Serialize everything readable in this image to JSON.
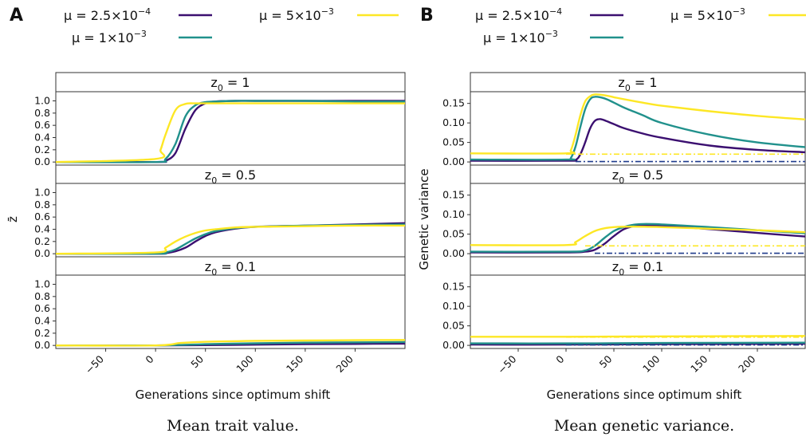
{
  "panels": {
    "A": {
      "letter": "A",
      "caption": "Mean trait value.",
      "xlabel": "Generations since optimum shift",
      "ylabel": "z̄"
    },
    "B": {
      "letter": "B",
      "caption": "Mean genetic variance.",
      "xlabel": "Generations since optimum shift",
      "ylabel": "Genetic variance"
    }
  },
  "legend": [
    {
      "prefix": "μ = 2.5×10",
      "exp": "−4",
      "color": "#3b0f70"
    },
    {
      "prefix": "μ = 1×10",
      "exp": "−3",
      "color": "#21918c"
    },
    {
      "prefix": "μ = 5×10",
      "exp": "−3",
      "color": "#fde725"
    }
  ],
  "strips": [
    {
      "base": "z",
      "sub": "0",
      "suffix": " = 1"
    },
    {
      "base": "z",
      "sub": "0",
      "suffix": " = 0.5"
    },
    {
      "base": "z",
      "sub": "0",
      "suffix": " = 0.1"
    }
  ],
  "chart_data": [
    {
      "type": "line",
      "title": "Mean trait value.",
      "xlabel": "Generations since optimum shift",
      "ylabel": "z̄",
      "xlim": [
        -100,
        250
      ],
      "xticks": [
        -50,
        0,
        50,
        100,
        150,
        200
      ],
      "ylim": [
        -0.05,
        1.15
      ],
      "yticks": [
        0.0,
        0.2,
        0.4,
        0.6,
        0.8,
        1.0
      ],
      "ytick_labels": [
        "0.0",
        "0.2",
        "0.4",
        "0.6",
        "0.8",
        "1.0"
      ],
      "facets": [
        {
          "label": "z0 = 1",
          "series": [
            {
              "name": "μ = 2.5×10^-4",
              "x": [
                -100,
                0,
                10,
                20,
                30,
                40,
                50,
                60,
                80,
                100,
                150,
                200,
                250
              ],
              "y": [
                0,
                0,
                0.02,
                0.15,
                0.55,
                0.85,
                0.96,
                0.99,
                1.0,
                1.0,
                1.0,
                1.0,
                1.0
              ]
            },
            {
              "name": "μ = 1×10^-3",
              "x": [
                -100,
                0,
                10,
                20,
                30,
                40,
                50,
                60,
                80,
                100,
                150,
                200,
                250
              ],
              "y": [
                0,
                0,
                0.05,
                0.3,
                0.75,
                0.93,
                0.98,
                0.99,
                1.0,
                1.0,
                1.0,
                0.99,
                0.99
              ]
            },
            {
              "name": "μ = 5×10^-3",
              "x": [
                -100,
                0,
                5,
                10,
                20,
                30,
                40,
                50,
                60,
                80,
                100,
                150,
                200,
                250
              ],
              "y": [
                0,
                0.05,
                0.2,
                0.45,
                0.85,
                0.95,
                0.96,
                0.96,
                0.96,
                0.96,
                0.96,
                0.96,
                0.96,
                0.96
              ]
            }
          ]
        },
        {
          "label": "z0 = 0.5",
          "series": [
            {
              "name": "μ = 2.5×10^-4",
              "x": [
                -100,
                0,
                10,
                20,
                30,
                40,
                50,
                60,
                80,
                100,
                150,
                200,
                250
              ],
              "y": [
                0,
                0,
                0.01,
                0.04,
                0.1,
                0.2,
                0.29,
                0.35,
                0.41,
                0.44,
                0.46,
                0.48,
                0.5
              ]
            },
            {
              "name": "μ = 1×10^-3",
              "x": [
                -100,
                0,
                10,
                20,
                30,
                40,
                50,
                60,
                80,
                100,
                150,
                200,
                250
              ],
              "y": [
                0,
                0,
                0.02,
                0.07,
                0.16,
                0.25,
                0.32,
                0.37,
                0.42,
                0.44,
                0.46,
                0.47,
                0.48
              ]
            },
            {
              "name": "μ = 5×10^-3",
              "x": [
                -100,
                0,
                10,
                20,
                30,
                40,
                50,
                60,
                80,
                100,
                150,
                200,
                250
              ],
              "y": [
                0,
                0.02,
                0.1,
                0.2,
                0.28,
                0.34,
                0.38,
                0.4,
                0.43,
                0.44,
                0.45,
                0.46,
                0.46
              ]
            }
          ]
        },
        {
          "label": "z0 = 0.1",
          "series": [
            {
              "name": "μ = 2.5×10^-4",
              "x": [
                -100,
                0,
                50,
                100,
                150,
                200,
                250
              ],
              "y": [
                0,
                0,
                0.005,
                0.012,
                0.02,
                0.025,
                0.03
              ]
            },
            {
              "name": "μ = 1×10^-3",
              "x": [
                -100,
                0,
                50,
                100,
                150,
                200,
                250
              ],
              "y": [
                0,
                0,
                0.02,
                0.035,
                0.045,
                0.05,
                0.055
              ]
            },
            {
              "name": "μ = 5×10^-3",
              "x": [
                -100,
                0,
                25,
                50,
                100,
                150,
                200,
                250
              ],
              "y": [
                0,
                0,
                0.04,
                0.06,
                0.075,
                0.08,
                0.085,
                0.09
              ]
            }
          ]
        }
      ]
    },
    {
      "type": "line",
      "title": "Mean genetic variance.",
      "xlabel": "Generations since optimum shift",
      "ylabel": "Genetic variance",
      "xlim": [
        -100,
        250
      ],
      "xticks": [
        -50,
        0,
        50,
        100,
        150,
        200
      ],
      "ylim": [
        -0.008,
        0.18
      ],
      "yticks": [
        0.0,
        0.05,
        0.1,
        0.15
      ],
      "ytick_labels": [
        "0.00",
        "0.05",
        "0.10",
        "0.15"
      ],
      "facets": [
        {
          "label": "z0 = 1",
          "series": [
            {
              "name": "μ = 2.5×10^-4",
              "x": [
                -100,
                0,
                10,
                15,
                20,
                25,
                30,
                35,
                40,
                50,
                60,
                80,
                100,
                150,
                200,
                250
              ],
              "y": [
                0.003,
                0.003,
                0.005,
                0.02,
                0.05,
                0.085,
                0.105,
                0.11,
                0.107,
                0.097,
                0.087,
                0.073,
                0.062,
                0.042,
                0.031,
                0.025
              ]
            },
            {
              "name": "μ = 1×10^-3",
              "x": [
                -100,
                0,
                5,
                10,
                15,
                20,
                25,
                30,
                40,
                50,
                60,
                80,
                100,
                150,
                200,
                250
              ],
              "y": [
                0.006,
                0.006,
                0.01,
                0.04,
                0.09,
                0.135,
                0.16,
                0.167,
                0.163,
                0.152,
                0.14,
                0.12,
                0.1,
                0.07,
                0.05,
                0.038
              ]
            },
            {
              "name": "μ = 5×10^-3",
              "x": [
                -100,
                0,
                5,
                10,
                15,
                20,
                25,
                30,
                40,
                50,
                60,
                80,
                100,
                150,
                200,
                250
              ],
              "y": [
                0.022,
                0.022,
                0.03,
                0.07,
                0.12,
                0.155,
                0.168,
                0.173,
                0.171,
                0.166,
                0.161,
                0.152,
                0.144,
                0.13,
                0.118,
                0.109
              ]
            },
            {
              "name": "dash-dot 1",
              "style": "dashdot",
              "color": "#fde725",
              "x": [
                0,
                250
              ],
              "y": [
                0.02,
                0.02
              ]
            },
            {
              "name": "dash-dot 2",
              "style": "dashdot",
              "color": "#1f3b8c",
              "x": [
                10,
                250
              ],
              "y": [
                0.001,
                0.001
              ]
            }
          ]
        },
        {
          "label": "z0 = 0.5",
          "series": [
            {
              "name": "μ = 2.5×10^-4",
              "x": [
                -100,
                0,
                20,
                30,
                40,
                50,
                60,
                70,
                80,
                100,
                150,
                200,
                250
              ],
              "y": [
                0.003,
                0.003,
                0.005,
                0.01,
                0.025,
                0.045,
                0.062,
                0.07,
                0.073,
                0.072,
                0.063,
                0.053,
                0.044
              ]
            },
            {
              "name": "μ = 1×10^-3",
              "x": [
                -100,
                0,
                20,
                30,
                40,
                50,
                60,
                70,
                80,
                100,
                150,
                200,
                250
              ],
              "y": [
                0.005,
                0.005,
                0.008,
                0.02,
                0.04,
                0.058,
                0.068,
                0.074,
                0.076,
                0.075,
                0.068,
                0.06,
                0.052
              ]
            },
            {
              "name": "μ = 5×10^-3",
              "x": [
                -100,
                0,
                10,
                20,
                30,
                40,
                50,
                60,
                80,
                100,
                150,
                200,
                250
              ],
              "y": [
                0.022,
                0.022,
                0.03,
                0.045,
                0.058,
                0.065,
                0.068,
                0.069,
                0.069,
                0.068,
                0.064,
                0.06,
                0.055
              ]
            },
            {
              "name": "dash-dot 1",
              "style": "dashdot",
              "color": "#fde725",
              "x": [
                20,
                250
              ],
              "y": [
                0.02,
                0.02
              ]
            },
            {
              "name": "dash-dot 2",
              "style": "dashdot",
              "color": "#1f3b8c",
              "x": [
                30,
                250
              ],
              "y": [
                0.001,
                0.001
              ]
            }
          ]
        },
        {
          "label": "z0 = 0.1",
          "series": [
            {
              "name": "μ = 2.5×10^-4",
              "x": [
                -100,
                0,
                100,
                250
              ],
              "y": [
                0.002,
                0.002,
                0.003,
                0.004
              ]
            },
            {
              "name": "μ = 1×10^-3",
              "x": [
                -100,
                0,
                100,
                250
              ],
              "y": [
                0.005,
                0.005,
                0.006,
                0.007
              ]
            },
            {
              "name": "μ = 5×10^-3",
              "x": [
                -100,
                0,
                100,
                250
              ],
              "y": [
                0.022,
                0.022,
                0.023,
                0.024
              ]
            },
            {
              "name": "dash-dot 1",
              "style": "dashdot",
              "color": "#fde725",
              "x": [
                0,
                250
              ],
              "y": [
                0.021,
                0.021
              ]
            },
            {
              "name": "dash-dot 2",
              "style": "dashdot",
              "color": "#1f3b8c",
              "x": [
                0,
                250
              ],
              "y": [
                0.001,
                0.001
              ]
            }
          ]
        }
      ]
    }
  ]
}
